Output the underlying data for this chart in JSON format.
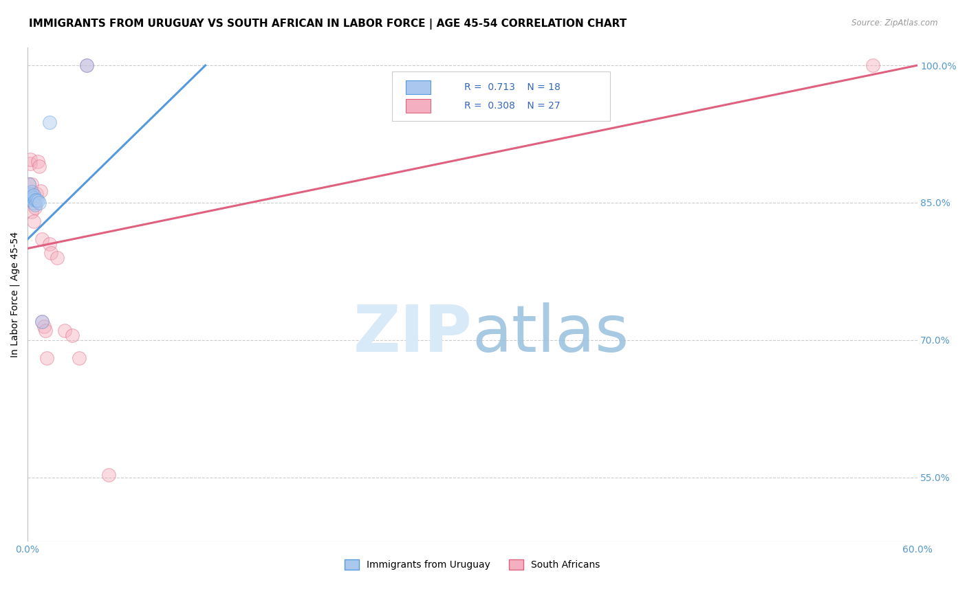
{
  "title": "IMMIGRANTS FROM URUGUAY VS SOUTH AFRICAN IN LABOR FORCE | AGE 45-54 CORRELATION CHART",
  "source": "Source: ZipAtlas.com",
  "ylabel": "In Labor Force | Age 45-54",
  "xlim": [
    0.0,
    0.6
  ],
  "ylim": [
    0.48,
    1.02
  ],
  "xticks": [
    0.0,
    0.1,
    0.2,
    0.3,
    0.4,
    0.5,
    0.6
  ],
  "xticklabels": [
    "0.0%",
    "",
    "",
    "",
    "",
    "",
    "60.0%"
  ],
  "yticks": [
    0.55,
    0.7,
    0.85,
    1.0
  ],
  "yticklabels": [
    "55.0%",
    "70.0%",
    "85.0%",
    "100.0%"
  ],
  "blue_scatter_x": [
    0.001,
    0.001,
    0.002,
    0.002,
    0.003,
    0.003,
    0.003,
    0.004,
    0.004,
    0.004,
    0.005,
    0.005,
    0.006,
    0.007,
    0.008,
    0.01,
    0.015,
    0.04
  ],
  "blue_scatter_y": [
    0.858,
    0.87,
    0.855,
    0.86,
    0.853,
    0.857,
    0.862,
    0.855,
    0.85,
    0.858,
    0.853,
    0.848,
    0.853,
    0.852,
    0.85,
    0.72,
    0.938,
    1.0
  ],
  "pink_scatter_x": [
    0.001,
    0.001,
    0.002,
    0.002,
    0.003,
    0.003,
    0.004,
    0.004,
    0.005,
    0.006,
    0.007,
    0.008,
    0.009,
    0.01,
    0.01,
    0.011,
    0.012,
    0.013,
    0.015,
    0.016,
    0.02,
    0.025,
    0.03,
    0.035,
    0.04,
    0.055,
    0.57
  ],
  "pink_scatter_y": [
    0.87,
    0.858,
    0.893,
    0.897,
    0.84,
    0.87,
    0.858,
    0.83,
    0.845,
    0.86,
    0.895,
    0.89,
    0.863,
    0.72,
    0.81,
    0.715,
    0.71,
    0.68,
    0.805,
    0.795,
    0.79,
    0.71,
    0.705,
    0.68,
    1.0,
    0.553,
    1.0
  ],
  "blue_line_x": [
    0.0,
    0.12
  ],
  "blue_line_y": [
    0.81,
    1.0
  ],
  "pink_line_x": [
    0.0,
    0.6
  ],
  "pink_line_y": [
    0.8,
    1.0
  ],
  "scatter_size": 200,
  "scatter_alpha": 0.45,
  "line_color_blue": "#5599dd",
  "line_color_pink": "#e06080",
  "scatter_color_blue": "#aac8ee",
  "scatter_color_pink": "#f4b0c0",
  "grid_color": "#cccccc",
  "axis_color": "#5599cc",
  "background_color": "#ffffff",
  "title_fontsize": 11,
  "label_fontsize": 10,
  "legend_R_blue": "0.713",
  "legend_N_blue": "18",
  "legend_R_pink": "0.308",
  "legend_N_pink": "27",
  "legend_text_color": "#3366bb",
  "watermark_ZIP_color": "#d8eaf8",
  "watermark_atlas_color": "#99c0dd"
}
